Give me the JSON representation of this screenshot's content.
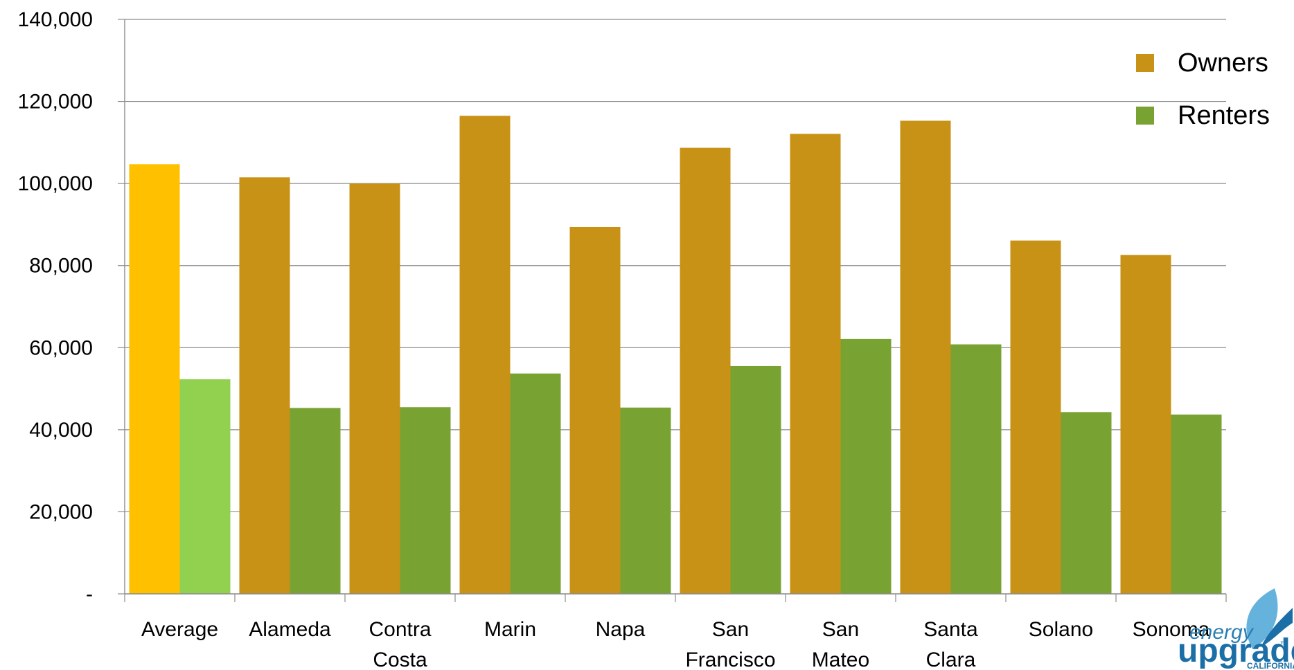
{
  "chart_data": {
    "type": "bar",
    "categories": [
      [
        "Average"
      ],
      [
        "Alameda"
      ],
      [
        "Contra",
        "Costa"
      ],
      [
        "Marin"
      ],
      [
        "Napa"
      ],
      [
        "San",
        "Francisco"
      ],
      [
        "San",
        "Mateo"
      ],
      [
        "Santa",
        "Clara"
      ],
      [
        "Solano"
      ],
      [
        "Sonoma"
      ]
    ],
    "series": [
      {
        "name": "Owners",
        "color": "#C89216",
        "highlight_color": "#FFC000",
        "values": [
          104700,
          101500,
          100000,
          116500,
          89400,
          108700,
          112100,
          115300,
          86100,
          82600
        ]
      },
      {
        "name": "Renters",
        "color": "#78A232",
        "highlight_color": "#92D050",
        "values": [
          52300,
          45300,
          45500,
          53700,
          45400,
          55500,
          62100,
          60800,
          44300,
          43700
        ]
      }
    ],
    "highlight_category_index": 0,
    "ylim": [
      0,
      140000
    ],
    "yticks": [
      0,
      20000,
      40000,
      60000,
      80000,
      100000,
      120000,
      140000
    ],
    "ytick_labels": [
      "-",
      "20,000",
      "40,000",
      "60,000",
      "80,000",
      "100,000",
      "120,000",
      "140,000"
    ],
    "grid": true,
    "legend_position": "top-right",
    "title": "",
    "xlabel": "",
    "ylabel": ""
  },
  "logo": {
    "line1": "energy",
    "line2": "upgrade",
    "line3": "CALIFORNIA",
    "tm": "™"
  }
}
